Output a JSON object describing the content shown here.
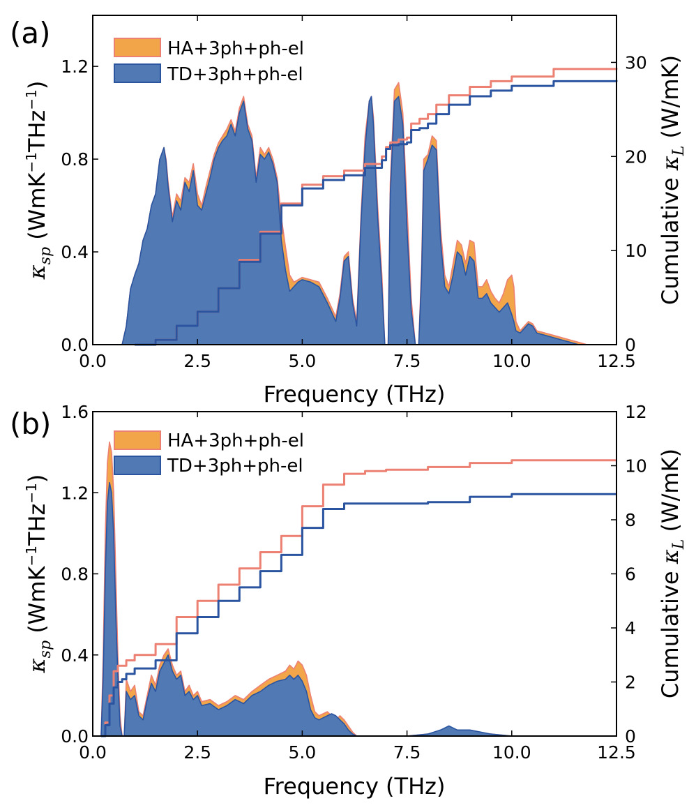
{
  "colors": {
    "ha_fill": "#F3A54A",
    "ha_line": "#EC8072",
    "td_fill": "#5179B4",
    "td_line": "#2A54A0",
    "axis": "#000000"
  },
  "panel_a": {
    "tag": "(a)",
    "legend": [
      "HA+3ph+ph-el",
      "TD+3ph+ph-el"
    ],
    "xlabel": "Frequency (THz)",
    "ylabel_left": {
      "pre": "κ",
      "sub": "sp",
      "mid": " (WmK",
      "sup1": "−1",
      "post1": "THz",
      "sup2": "−1",
      "post2": ")"
    },
    "ylabel_right": {
      "pre": "Cumulative ",
      "sym": "κ",
      "sub": "L",
      "post": " (W/mK)"
    },
    "xticks": [
      "0.0",
      "2.5",
      "5.0",
      "7.5",
      "10.0",
      "12.5"
    ],
    "yticks_left": [
      "0.0",
      "0.4",
      "0.8",
      "1.2"
    ],
    "yticks_right": [
      "0",
      "10",
      "20",
      "30"
    ]
  },
  "panel_b": {
    "tag": "(b)",
    "legend": [
      "HA+3ph+ph-el",
      "TD+3ph+ph-el"
    ],
    "xlabel": "Frequency (THz)",
    "ylabel_left": {
      "pre": "κ",
      "sub": "sp",
      "mid": " (WmK",
      "sup1": "−1",
      "post1": "THz",
      "sup2": "−1",
      "post2": ")"
    },
    "ylabel_right": {
      "pre": "Cumulative ",
      "sym": "κ",
      "sub": "L",
      "post": " (W/mK)"
    },
    "xticks": [
      "0.0",
      "2.5",
      "5.0",
      "7.5",
      "10.0",
      "12.5"
    ],
    "yticks_left": [
      "0.0",
      "0.4",
      "0.8",
      "1.2",
      "1.6"
    ],
    "yticks_right": [
      "0",
      "2",
      "4",
      "6",
      "8",
      "10",
      "12"
    ]
  },
  "chart_data": [
    {
      "type": "area",
      "title": "(a)",
      "xlabel": "Frequency (THz)",
      "ylabel": "κsp (WmK−1THz−1)",
      "ylabel_right": "Cumulative κL (W/mK)",
      "xlim": [
        0,
        12.5
      ],
      "ylim": [
        0,
        1.42
      ],
      "ylim_right": [
        0,
        35
      ],
      "legend_position": "top-left",
      "series": [
        {
          "name": "HA+3ph+ph-el",
          "kind": "spectral",
          "x": [
            0.7,
            0.8,
            0.9,
            1.0,
            1.1,
            1.2,
            1.3,
            1.4,
            1.5,
            1.6,
            1.7,
            1.75,
            1.8,
            1.9,
            2.0,
            2.1,
            2.2,
            2.3,
            2.4,
            2.5,
            2.6,
            2.7,
            2.8,
            2.9,
            3.0,
            3.1,
            3.2,
            3.3,
            3.4,
            3.5,
            3.6,
            3.7,
            3.8,
            3.9,
            4.0,
            4.1,
            4.2,
            4.3,
            4.4,
            4.5,
            4.6,
            4.7,
            4.8,
            4.9,
            5.0,
            5.2,
            5.4,
            5.6,
            5.8,
            5.9,
            6.0,
            6.1,
            6.2,
            6.3,
            6.4,
            6.5,
            6.6,
            6.65,
            6.7,
            6.8,
            6.9,
            6.97,
            7.05,
            7.1,
            7.2,
            7.3,
            7.4,
            7.5,
            7.6,
            7.7,
            7.78,
            7.85,
            7.9,
            8.0,
            8.1,
            8.2,
            8.3,
            8.4,
            8.5,
            8.6,
            8.7,
            8.8,
            8.9,
            9.0,
            9.1,
            9.2,
            9.3,
            9.4,
            9.5,
            9.6,
            9.7,
            9.8,
            9.9,
            10.0,
            10.05,
            10.1,
            10.2,
            10.3,
            10.4,
            10.5,
            10.6,
            10.8,
            11.0,
            11.2,
            11.4,
            11.6,
            11.8
          ],
          "values": [
            0.0,
            0.08,
            0.24,
            0.3,
            0.35,
            0.45,
            0.5,
            0.6,
            0.65,
            0.8,
            0.85,
            0.8,
            0.7,
            0.55,
            0.65,
            0.62,
            0.72,
            0.7,
            0.78,
            0.65,
            0.6,
            0.68,
            0.75,
            0.82,
            0.87,
            0.9,
            0.93,
            0.97,
            0.92,
            1.02,
            1.07,
            0.95,
            0.9,
            0.72,
            0.85,
            0.82,
            0.85,
            0.8,
            0.72,
            0.55,
            0.42,
            0.3,
            0.27,
            0.28,
            0.29,
            0.28,
            0.27,
            0.2,
            0.12,
            0.22,
            0.38,
            0.4,
            0.2,
            0.1,
            0.55,
            0.9,
            1.05,
            1.07,
            0.98,
            0.6,
            0.3,
            0.0,
            0.0,
            0.7,
            1.1,
            1.13,
            1.0,
            0.6,
            0.2,
            0.0,
            0.0,
            0.35,
            0.8,
            0.82,
            0.9,
            0.88,
            0.5,
            0.3,
            0.25,
            0.35,
            0.45,
            0.43,
            0.35,
            0.45,
            0.44,
            0.25,
            0.25,
            0.28,
            0.23,
            0.2,
            0.18,
            0.22,
            0.28,
            0.3,
            0.25,
            0.1,
            0.06,
            0.08,
            0.1,
            0.09,
            0.06,
            0.05,
            0.04,
            0.03,
            0.02,
            0.01,
            0.0
          ]
        },
        {
          "name": "TD+3ph+ph-el",
          "kind": "spectral",
          "x": [
            0.7,
            0.8,
            0.9,
            1.0,
            1.1,
            1.2,
            1.3,
            1.4,
            1.5,
            1.6,
            1.7,
            1.75,
            1.8,
            1.9,
            2.0,
            2.1,
            2.2,
            2.3,
            2.4,
            2.5,
            2.6,
            2.7,
            2.8,
            2.9,
            3.0,
            3.1,
            3.2,
            3.3,
            3.4,
            3.5,
            3.6,
            3.7,
            3.8,
            3.9,
            4.0,
            4.1,
            4.2,
            4.3,
            4.4,
            4.5,
            4.6,
            4.7,
            4.8,
            4.9,
            5.0,
            5.2,
            5.4,
            5.6,
            5.8,
            5.9,
            6.0,
            6.1,
            6.2,
            6.3,
            6.4,
            6.5,
            6.6,
            6.65,
            6.7,
            6.8,
            6.9,
            6.97,
            7.05,
            7.1,
            7.2,
            7.3,
            7.4,
            7.5,
            7.6,
            7.7,
            7.78,
            7.85,
            7.9,
            8.0,
            8.1,
            8.2,
            8.3,
            8.4,
            8.5,
            8.6,
            8.7,
            8.8,
            8.9,
            9.0,
            9.1,
            9.2,
            9.3,
            9.4,
            9.5,
            9.6,
            9.7,
            9.8,
            9.9,
            10.0,
            10.05,
            10.1,
            10.2,
            10.3,
            10.4,
            10.5,
            10.6,
            10.8,
            11.0,
            11.2,
            11.4,
            11.6,
            11.8
          ],
          "values": [
            0.0,
            0.08,
            0.24,
            0.3,
            0.35,
            0.45,
            0.5,
            0.6,
            0.65,
            0.8,
            0.85,
            0.79,
            0.68,
            0.53,
            0.62,
            0.58,
            0.7,
            0.66,
            0.75,
            0.6,
            0.58,
            0.65,
            0.72,
            0.8,
            0.85,
            0.88,
            0.9,
            0.95,
            0.9,
            1.0,
            1.05,
            0.93,
            0.88,
            0.7,
            0.82,
            0.8,
            0.83,
            0.78,
            0.7,
            0.45,
            0.32,
            0.23,
            0.25,
            0.27,
            0.28,
            0.27,
            0.25,
            0.18,
            0.1,
            0.2,
            0.36,
            0.38,
            0.18,
            0.08,
            0.52,
            0.85,
            1.05,
            1.07,
            0.95,
            0.55,
            0.25,
            0.0,
            0.0,
            0.65,
            1.05,
            1.07,
            0.95,
            0.5,
            0.15,
            0.0,
            0.0,
            0.3,
            0.75,
            0.8,
            0.86,
            0.84,
            0.45,
            0.25,
            0.22,
            0.3,
            0.4,
            0.38,
            0.3,
            0.38,
            0.36,
            0.2,
            0.2,
            0.22,
            0.18,
            0.16,
            0.14,
            0.16,
            0.18,
            0.13,
            0.1,
            0.06,
            0.05,
            0.07,
            0.09,
            0.08,
            0.05,
            0.04,
            0.03,
            0.02,
            0.01,
            0.0,
            0.0
          ]
        },
        {
          "name": "HA+3ph+ph-el (cumulative)",
          "kind": "cumulative",
          "axis": "right",
          "x": [
            1.0,
            1.5,
            2.0,
            2.5,
            3.0,
            3.5,
            4.0,
            4.5,
            5.0,
            5.5,
            6.0,
            6.5,
            6.9,
            7.0,
            7.1,
            7.3,
            7.5,
            7.6,
            7.8,
            8.0,
            8.2,
            8.5,
            9.0,
            9.5,
            10.0,
            11.0,
            12.5
          ],
          "values": [
            0.0,
            0.5,
            2.0,
            3.5,
            6.0,
            9.0,
            12.0,
            15.0,
            17.0,
            17.9,
            18.5,
            19.2,
            20.0,
            21.0,
            21.5,
            21.8,
            22.0,
            23.5,
            24.0,
            24.5,
            25.5,
            26.5,
            27.4,
            28.0,
            28.5,
            29.3,
            29.4
          ]
        },
        {
          "name": "TD+3ph+ph-el (cumulative)",
          "kind": "cumulative",
          "axis": "right",
          "x": [
            1.0,
            1.5,
            2.0,
            2.5,
            3.0,
            3.5,
            4.0,
            4.5,
            5.0,
            5.5,
            6.0,
            6.5,
            6.9,
            7.0,
            7.1,
            7.3,
            7.5,
            7.6,
            7.8,
            8.0,
            8.2,
            8.5,
            9.0,
            9.5,
            10.0,
            11.0,
            12.5
          ],
          "values": [
            0.0,
            0.5,
            2.0,
            3.5,
            6.0,
            8.8,
            11.8,
            14.8,
            16.6,
            17.5,
            18.0,
            18.8,
            19.6,
            20.8,
            21.2,
            21.3,
            21.5,
            22.8,
            23.0,
            23.5,
            24.5,
            25.5,
            26.4,
            27.0,
            27.5,
            28.0,
            28.1
          ]
        }
      ]
    },
    {
      "type": "area",
      "title": "(b)",
      "xlabel": "Frequency (THz)",
      "ylabel": "κsp (WmK−1THz−1)",
      "ylabel_right": "Cumulative κL (W/mK)",
      "xlim": [
        0,
        12.5
      ],
      "ylim": [
        0,
        1.6
      ],
      "ylim_right": [
        0,
        12
      ],
      "legend_position": "top-left",
      "series": [
        {
          "name": "HA+3ph+ph-el",
          "kind": "spectral",
          "x": [
            0.2,
            0.25,
            0.3,
            0.35,
            0.4,
            0.45,
            0.5,
            0.55,
            0.6,
            0.65,
            0.7,
            0.75,
            0.8,
            0.9,
            1.0,
            1.1,
            1.2,
            1.3,
            1.4,
            1.5,
            1.6,
            1.7,
            1.8,
            1.9,
            2.0,
            2.1,
            2.2,
            2.3,
            2.4,
            2.5,
            2.6,
            2.8,
            3.0,
            3.2,
            3.4,
            3.6,
            3.8,
            4.0,
            4.2,
            4.4,
            4.6,
            4.7,
            4.8,
            4.9,
            5.0,
            5.1,
            5.2,
            5.3,
            5.4,
            5.5,
            5.6,
            5.7,
            5.8,
            5.9,
            6.0,
            6.1,
            6.2,
            6.3,
            6.5,
            7.0,
            7.5,
            8.0,
            8.3,
            8.5,
            8.7,
            9.0,
            9.5,
            10.0
          ],
          "values": [
            0.0,
            0.4,
            1.0,
            1.35,
            1.45,
            1.4,
            1.2,
            0.8,
            0.4,
            0.1,
            0.0,
            0.0,
            0.28,
            0.22,
            0.25,
            0.12,
            0.1,
            0.2,
            0.3,
            0.25,
            0.35,
            0.4,
            0.43,
            0.35,
            0.3,
            0.32,
            0.22,
            0.25,
            0.2,
            0.22,
            0.17,
            0.18,
            0.15,
            0.17,
            0.2,
            0.18,
            0.22,
            0.25,
            0.28,
            0.3,
            0.32,
            0.35,
            0.33,
            0.37,
            0.35,
            0.3,
            0.2,
            0.12,
            0.1,
            0.11,
            0.12,
            0.1,
            0.08,
            0.1,
            0.08,
            0.05,
            0.02,
            0.0,
            0.0,
            0.0,
            0.0,
            0.01,
            0.02,
            0.04,
            0.03,
            0.02,
            0.01,
            0.0
          ]
        },
        {
          "name": "TD+3ph+ph-el",
          "kind": "spectral",
          "x": [
            0.2,
            0.25,
            0.3,
            0.35,
            0.4,
            0.45,
            0.5,
            0.55,
            0.6,
            0.65,
            0.7,
            0.75,
            0.8,
            0.9,
            1.0,
            1.1,
            1.2,
            1.3,
            1.4,
            1.5,
            1.6,
            1.7,
            1.8,
            1.9,
            2.0,
            2.1,
            2.2,
            2.3,
            2.4,
            2.5,
            2.6,
            2.8,
            3.0,
            3.2,
            3.4,
            3.6,
            3.8,
            4.0,
            4.2,
            4.4,
            4.6,
            4.7,
            4.8,
            4.9,
            5.0,
            5.1,
            5.2,
            5.3,
            5.4,
            5.5,
            5.6,
            5.7,
            5.8,
            5.9,
            6.0,
            6.1,
            6.2,
            6.3,
            6.5,
            7.0,
            7.5,
            8.0,
            8.3,
            8.5,
            8.7,
            9.0,
            9.5,
            10.0
          ],
          "values": [
            0.0,
            0.3,
            0.8,
            1.15,
            1.25,
            1.2,
            1.0,
            0.6,
            0.3,
            0.05,
            0.0,
            0.0,
            0.22,
            0.18,
            0.2,
            0.1,
            0.08,
            0.18,
            0.26,
            0.22,
            0.32,
            0.36,
            0.4,
            0.32,
            0.28,
            0.3,
            0.2,
            0.22,
            0.18,
            0.2,
            0.15,
            0.16,
            0.13,
            0.15,
            0.18,
            0.16,
            0.2,
            0.22,
            0.25,
            0.27,
            0.28,
            0.3,
            0.28,
            0.3,
            0.27,
            0.22,
            0.13,
            0.09,
            0.08,
            0.09,
            0.1,
            0.11,
            0.1,
            0.08,
            0.06,
            0.03,
            0.01,
            0.0,
            0.0,
            0.0,
            0.0,
            0.01,
            0.03,
            0.05,
            0.03,
            0.03,
            0.01,
            0.0
          ]
        },
        {
          "name": "HA+3ph+ph-el (cumulative)",
          "kind": "cumulative",
          "axis": "right",
          "x": [
            0.2,
            0.3,
            0.4,
            0.5,
            0.6,
            0.7,
            0.8,
            1.0,
            1.5,
            2.0,
            2.5,
            3.0,
            3.5,
            4.0,
            4.5,
            5.0,
            5.5,
            6.0,
            6.5,
            7.0,
            8.0,
            9.0,
            10.0,
            11.0,
            12.5
          ],
          "values": [
            0.0,
            0.5,
            1.5,
            2.4,
            2.6,
            2.6,
            2.8,
            3.0,
            3.4,
            4.4,
            5.0,
            5.6,
            6.2,
            6.8,
            7.4,
            8.5,
            9.3,
            9.7,
            9.8,
            9.85,
            9.95,
            10.1,
            10.2,
            10.2,
            10.2
          ]
        },
        {
          "name": "TD+3ph+ph-el (cumulative)",
          "kind": "cumulative",
          "axis": "right",
          "x": [
            0.2,
            0.3,
            0.4,
            0.5,
            0.6,
            0.7,
            0.8,
            1.0,
            1.5,
            2.0,
            2.5,
            3.0,
            3.5,
            4.0,
            4.5,
            5.0,
            5.5,
            6.0,
            6.5,
            7.0,
            8.0,
            9.0,
            10.0,
            11.0,
            12.5
          ],
          "values": [
            0.0,
            0.4,
            1.2,
            1.8,
            2.0,
            2.1,
            2.3,
            2.5,
            2.8,
            3.8,
            4.4,
            5.0,
            5.5,
            6.1,
            6.7,
            7.7,
            8.4,
            8.6,
            8.6,
            8.6,
            8.65,
            8.85,
            8.95,
            8.95,
            8.95
          ]
        }
      ]
    }
  ]
}
